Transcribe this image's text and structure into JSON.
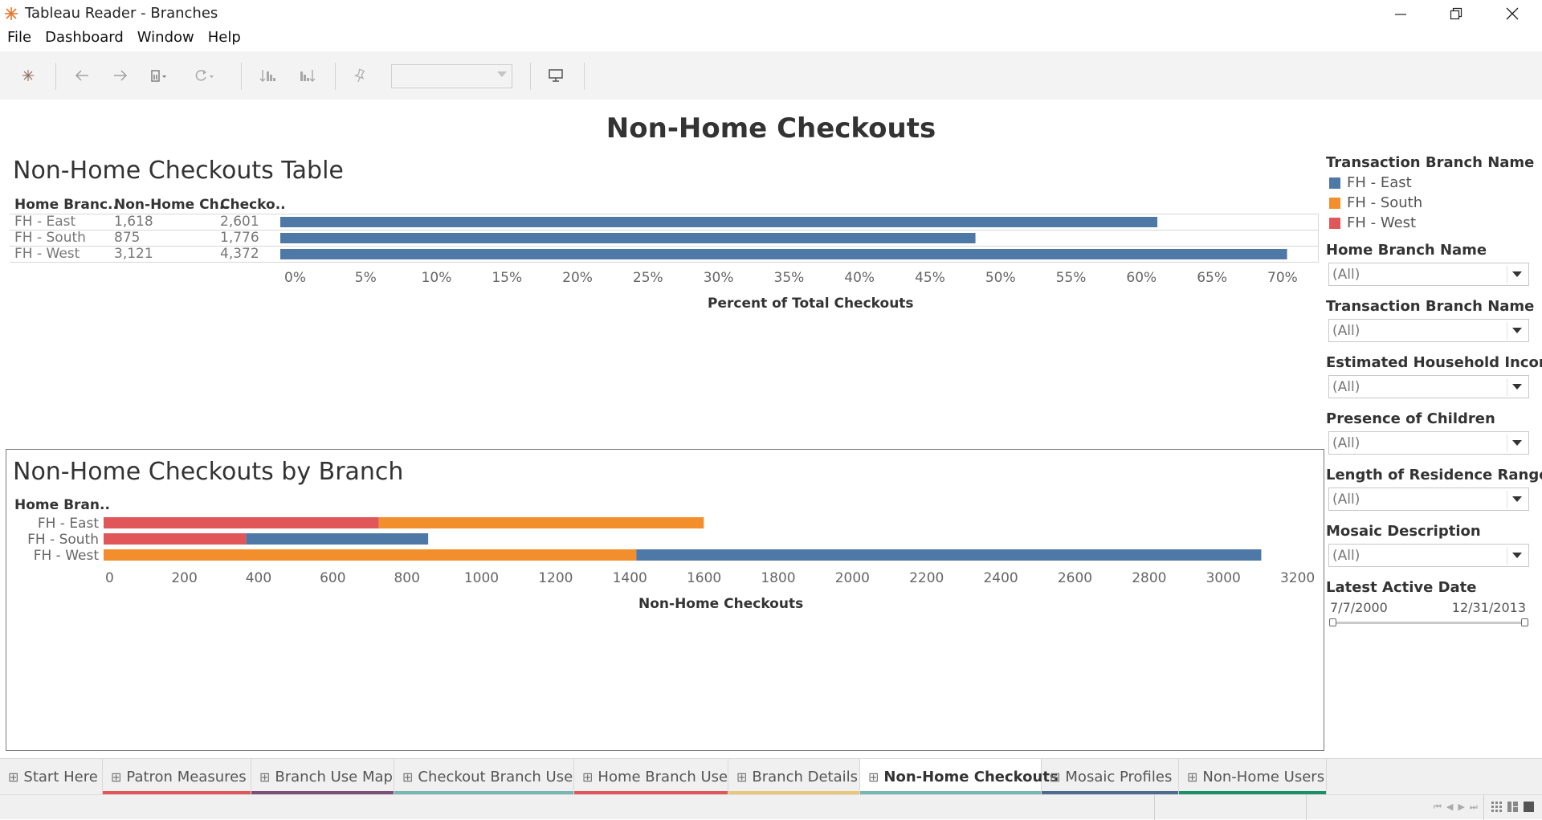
{
  "window": {
    "title": "Tableau Reader - Branches"
  },
  "menu": [
    "File",
    "Dashboard",
    "Window",
    "Help"
  ],
  "toolbar": {
    "icons": [
      "tableau-logo-icon",
      "back-icon",
      "forward-icon",
      "pause-updates-icon",
      "refresh-icon",
      "sort-ascending-icon",
      "sort-descending-icon",
      "pin-icon",
      "presentation-icon"
    ]
  },
  "dashboard": {
    "title": "Non-Home Checkouts"
  },
  "table_sheet": {
    "title": "Non-Home Checkouts Table",
    "columns": [
      "Home Branc..",
      "Non-Home Ch..",
      "Checko.."
    ],
    "rows": [
      {
        "branch": "FH - East",
        "non_home": "1,618",
        "checkouts": "2,601"
      },
      {
        "branch": "FH - South",
        "non_home": "875",
        "checkouts": "1,776"
      },
      {
        "branch": "FH - West",
        "non_home": "3,121",
        "checkouts": "4,372"
      }
    ],
    "axis_title": "Percent of Total Checkouts",
    "ticks": [
      "0%",
      "5%",
      "10%",
      "15%",
      "20%",
      "25%",
      "30%",
      "35%",
      "40%",
      "45%",
      "50%",
      "55%",
      "60%",
      "65%",
      "70%"
    ]
  },
  "branch_sheet": {
    "title": "Non-Home Checkouts by Branch",
    "row_header": "Home Bran..",
    "axis_title": "Non-Home Checkouts",
    "ticks": [
      "0",
      "200",
      "400",
      "600",
      "800",
      "1000",
      "1200",
      "1400",
      "1600",
      "1800",
      "2000",
      "2200",
      "2400",
      "2600",
      "2800",
      "3000",
      "3200"
    ]
  },
  "colors": {
    "east": "#4e79a7",
    "south": "#f28e2b",
    "west": "#e15759"
  },
  "chart_data": [
    {
      "type": "bar",
      "orientation": "horizontal",
      "categories": [
        "FH - East",
        "FH - South",
        "FH - West"
      ],
      "values": [
        62.2,
        49.3,
        71.4
      ],
      "xlabel": "Percent of Total Checkouts",
      "xlim": [
        0,
        75
      ]
    },
    {
      "type": "bar",
      "orientation": "horizontal",
      "stacked": true,
      "categories": [
        "FH - East",
        "FH - South",
        "FH - West"
      ],
      "series": [
        {
          "name": "FH - West",
          "values": [
            742,
            384,
            0
          ]
        },
        {
          "name": "FH - South",
          "values": [
            876,
            0,
            1436
          ]
        },
        {
          "name": "FH - East",
          "values": [
            0,
            491,
            1685
          ]
        }
      ],
      "series_order": [
        [
          "FH - West",
          "FH - South"
        ],
        [
          "FH - West",
          "FH - East"
        ],
        [
          "FH - South",
          "FH - East"
        ]
      ],
      "xlabel": "Non-Home Checkouts",
      "xlim": [
        0,
        3200
      ]
    }
  ],
  "filters": {
    "legend_title": "Transaction Branch Name",
    "legend": [
      {
        "label": "FH - East",
        "color": "#4e79a7"
      },
      {
        "label": "FH - South",
        "color": "#f28e2b"
      },
      {
        "label": "FH - West",
        "color": "#e15759"
      }
    ],
    "dropdowns": [
      {
        "title": "Home Branch Name",
        "value": "(All)"
      },
      {
        "title": "Transaction Branch Name",
        "value": "(All)"
      },
      {
        "title": "Estimated Household Income",
        "value": "(All)"
      },
      {
        "title": "Presence of Children",
        "value": "(All)"
      },
      {
        "title": "Length of Residence Range",
        "value": "(All)"
      },
      {
        "title": "Mosaic Description",
        "value": "(All)"
      }
    ],
    "date": {
      "title": "Latest Active Date",
      "start": "7/7/2000",
      "end": "12/31/2013"
    }
  },
  "tabs": [
    {
      "label": "Start Here",
      "color": "#e15759"
    },
    {
      "label": "Patron Measures",
      "color": "#e15759"
    },
    {
      "label": "Branch Use Map",
      "color": "#7b4f7a"
    },
    {
      "label": "Checkout Branch Use",
      "color": "#76b7b2"
    },
    {
      "label": "Home Branch Use",
      "color": "#e15759"
    },
    {
      "label": "Branch Details",
      "color": "#e8c77c"
    },
    {
      "label": "Non-Home Checkouts",
      "color": "#76b7b2",
      "active": true
    },
    {
      "label": "Mosaic Profiles",
      "color": "#4e6b8f"
    },
    {
      "label": "Non-Home Users",
      "color": "#1a8f6a"
    }
  ]
}
